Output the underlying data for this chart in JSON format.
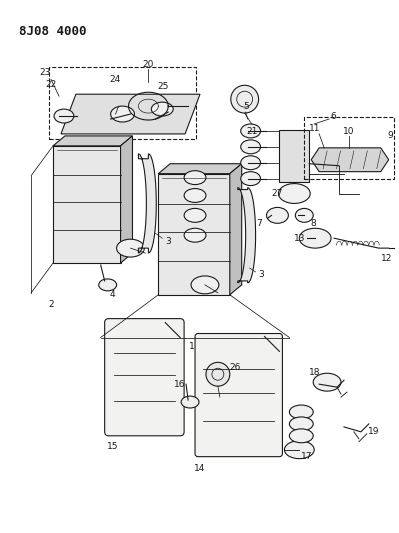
{
  "title": "8J08 4000",
  "bg_color": "#ffffff",
  "line_color": "#1a1a1a",
  "fig_width": 3.99,
  "fig_height": 5.33,
  "dpi": 100,
  "label_fs": 6.5,
  "title_fs": 9
}
